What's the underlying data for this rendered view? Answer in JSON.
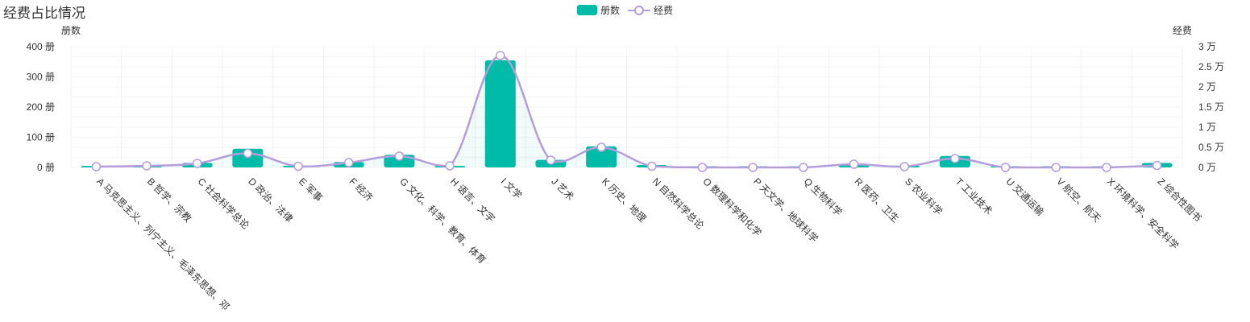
{
  "chart_data": {
    "type": "bar",
    "title": "经费占比情况",
    "legend": [
      {
        "name": "册数",
        "type": "bar",
        "color": "#00bba7"
      },
      {
        "name": "经费",
        "type": "line",
        "color": "#b49ddb"
      }
    ],
    "legend_position": "top-center",
    "y_left": {
      "name": "册数",
      "ticks": [
        "0 册",
        "100 册",
        "200 册",
        "300 册",
        "400 册"
      ],
      "min": 0,
      "max": 400
    },
    "y_right": {
      "name": "经费",
      "ticks": [
        "0 万",
        "0.5 万",
        "1 万",
        "1.5 万",
        "2 万",
        "2.5 万",
        "3 万"
      ],
      "min": 0,
      "max": 3
    },
    "categories": [
      "A 马克思主义、列宁主义、毛泽东思想、邓",
      "B 哲学、宗教",
      "C 社会科学总论",
      "D 政治、法律",
      "E 军事",
      "F 经济",
      "G 文化、科学、教育、体育",
      "H 语言、文字",
      "I 文学",
      "J 艺术",
      "K 历史、地理",
      "N 自然科学总论",
      "O 数理科学和化学",
      "P 天文学、地球科学",
      "Q 生物科学",
      "R 医药、卫生",
      "S 农业科学",
      "T 工业技术",
      "U 交通运输",
      "V 航空、航天",
      "X 环境科学、安全科学",
      "Z 综合性图书"
    ],
    "series": [
      {
        "name": "册数",
        "type": "bar",
        "values": [
          5,
          6,
          15,
          62,
          6,
          18,
          42,
          5,
          355,
          25,
          70,
          8,
          1,
          1,
          1,
          10,
          6,
          38,
          1,
          1,
          2,
          15
        ]
      },
      {
        "name": "经费",
        "type": "line",
        "values": [
          0.02,
          0.04,
          0.1,
          0.35,
          0.03,
          0.12,
          0.28,
          0.04,
          2.78,
          0.18,
          0.5,
          0.03,
          0.0,
          0.0,
          0.0,
          0.08,
          0.02,
          0.22,
          0.0,
          0.0,
          0.0,
          0.05
        ]
      }
    ],
    "grid": true
  }
}
